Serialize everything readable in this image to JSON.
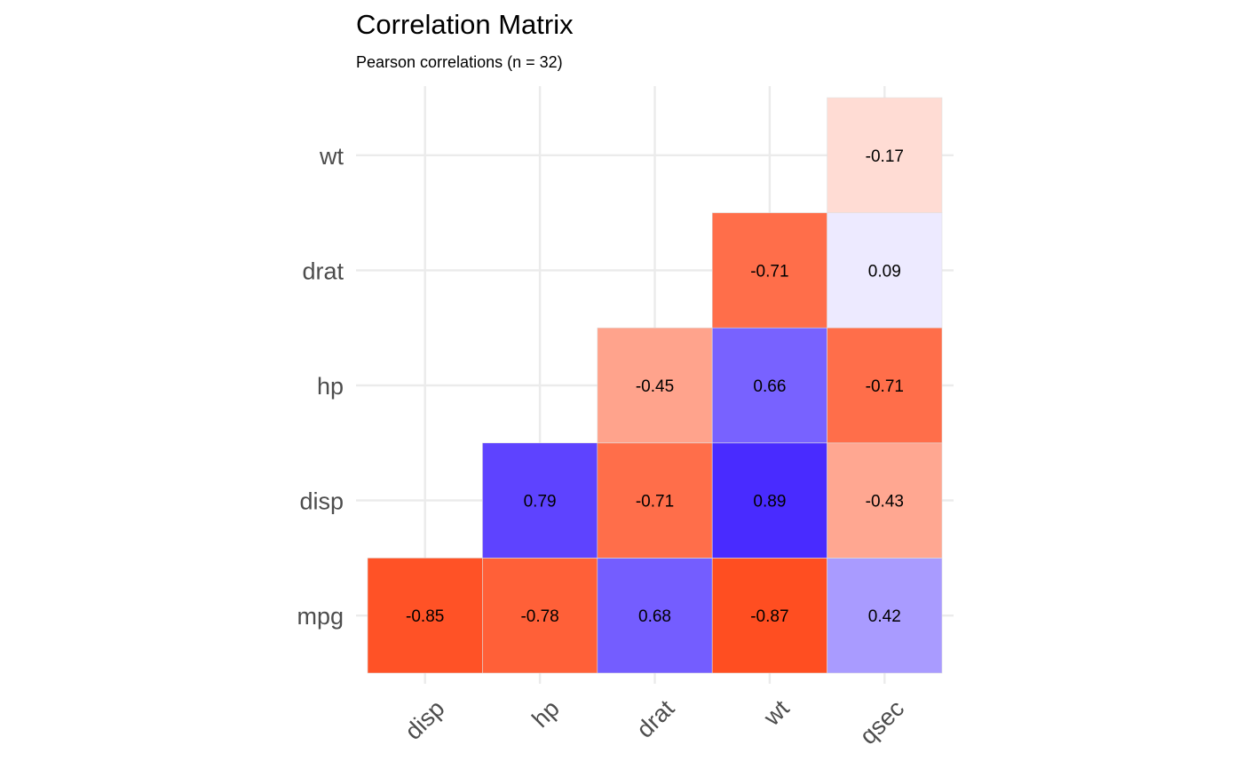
{
  "chart_data": {
    "type": "heatmap",
    "title": "Correlation Matrix",
    "subtitle": "Pearson correlations (n = 32)",
    "x_categories": [
      "disp",
      "hp",
      "drat",
      "wt",
      "qsec"
    ],
    "y_categories": [
      "mpg",
      "disp",
      "hp",
      "drat",
      "wt"
    ],
    "cells": [
      {
        "x": "disp",
        "y": "mpg",
        "value": -0.85,
        "label": "-0.85"
      },
      {
        "x": "hp",
        "y": "mpg",
        "value": -0.78,
        "label": "-0.78"
      },
      {
        "x": "drat",
        "y": "mpg",
        "value": 0.68,
        "label": "0.68"
      },
      {
        "x": "wt",
        "y": "mpg",
        "value": -0.87,
        "label": "-0.87"
      },
      {
        "x": "qsec",
        "y": "mpg",
        "value": 0.42,
        "label": "0.42"
      },
      {
        "x": "hp",
        "y": "disp",
        "value": 0.79,
        "label": "0.79"
      },
      {
        "x": "drat",
        "y": "disp",
        "value": -0.71,
        "label": "-0.71"
      },
      {
        "x": "wt",
        "y": "disp",
        "value": 0.89,
        "label": "0.89"
      },
      {
        "x": "qsec",
        "y": "disp",
        "value": -0.43,
        "label": "-0.43"
      },
      {
        "x": "drat",
        "y": "hp",
        "value": -0.45,
        "label": "-0.45"
      },
      {
        "x": "wt",
        "y": "hp",
        "value": 0.66,
        "label": "0.66"
      },
      {
        "x": "qsec",
        "y": "hp",
        "value": -0.71,
        "label": "-0.71"
      },
      {
        "x": "wt",
        "y": "drat",
        "value": -0.71,
        "label": "-0.71"
      },
      {
        "x": "qsec",
        "y": "drat",
        "value": 0.09,
        "label": "0.09"
      },
      {
        "x": "qsec",
        "y": "wt",
        "value": -0.17,
        "label": "-0.17"
      }
    ],
    "color_scale": {
      "low": "#ff3300",
      "mid": "#ffffff",
      "high": "#3311ff",
      "domain": [
        -1,
        0,
        1
      ]
    },
    "grid": true,
    "legend": "none"
  }
}
